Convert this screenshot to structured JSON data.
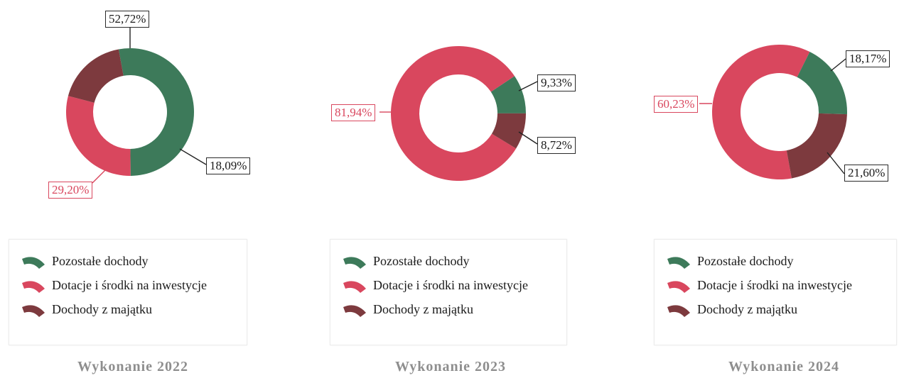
{
  "chart_data": [
    {
      "type": "pie",
      "title": "Wykonanie 2022",
      "categories": [
        "Pozostałe dochody",
        "Dotacje i środki na inwestycje",
        "Dochody z majątku"
      ],
      "values": [
        52.72,
        29.2,
        18.09
      ],
      "labels": [
        "52,72%",
        "29,20%",
        "18,09%"
      ],
      "legend_position": "bottom"
    },
    {
      "type": "pie",
      "title": "Wykonanie 2023",
      "categories": [
        "Pozostałe dochody",
        "Dotacje i środki na inwestycje",
        "Dochody z majątku"
      ],
      "values": [
        9.33,
        81.94,
        8.72
      ],
      "labels": [
        "9,33%",
        "81,94%",
        "8,72%"
      ],
      "legend_position": "bottom"
    },
    {
      "type": "pie",
      "title": "Wykonanie 2024",
      "categories": [
        "Pozostałe dochody",
        "Dotacje i środki na inwestycje",
        "Dochody z majątku"
      ],
      "values": [
        18.17,
        60.23,
        21.6
      ],
      "labels": [
        "18,17%",
        "60,23%",
        "21,60%"
      ],
      "legend_position": "bottom"
    }
  ],
  "colors": [
    "#3d7a5a",
    "#d9475e",
    "#7d3a3e"
  ],
  "label_colors": [
    "#1a1a1a",
    "#d9475e",
    "#1a1a1a"
  ],
  "legend_icon": "arc-segment-icon"
}
